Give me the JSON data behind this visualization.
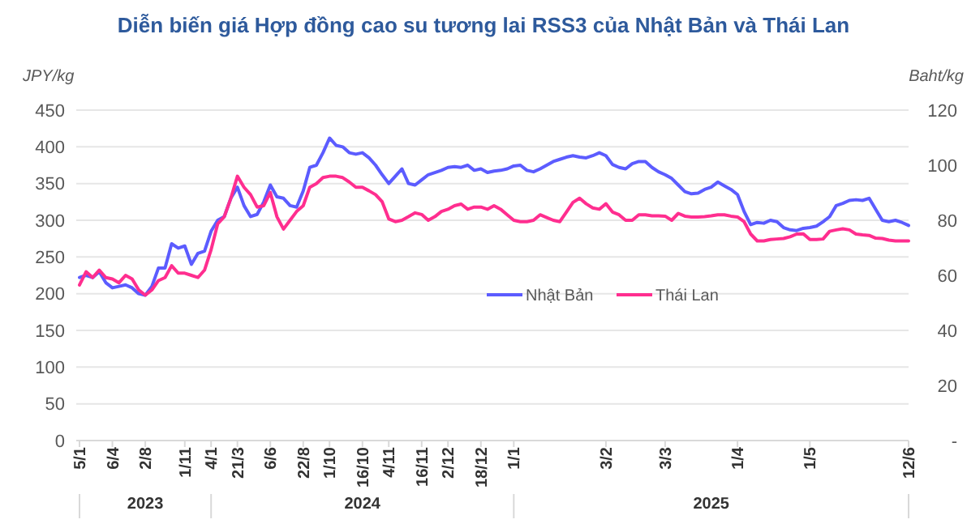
{
  "chart_data": {
    "type": "line",
    "title": "Diễn biến giá Hợp đồng cao su tương lai RSS3 của Nhật Bản và Thái Lan",
    "ylabel": "JPY/kg",
    "y2label": "Baht/kg",
    "categories": [
      "5/1",
      null,
      null,
      null,
      null,
      "6/4",
      null,
      null,
      null,
      null,
      "2/8",
      null,
      null,
      null,
      null,
      null,
      "1/11",
      null,
      null,
      null,
      "4/1",
      null,
      null,
      null,
      "21/3",
      null,
      null,
      null,
      null,
      "6/6",
      null,
      null,
      null,
      null,
      "22/8",
      null,
      null,
      null,
      "1/10",
      null,
      null,
      null,
      null,
      "16/10",
      null,
      null,
      null,
      "4/11",
      null,
      null,
      null,
      null,
      "16/11",
      null,
      null,
      null,
      "2/12",
      null,
      null,
      null,
      null,
      "18/12",
      null,
      null,
      null,
      null,
      "1/1",
      null,
      null,
      null,
      null,
      null,
      null,
      null,
      null,
      null,
      null,
      null,
      null,
      null,
      "3/2",
      null,
      null,
      null,
      null,
      null,
      null,
      null,
      null,
      "3/3",
      null,
      null,
      null,
      null,
      null,
      null,
      null,
      null,
      null,
      null,
      "1/4",
      null,
      null,
      null,
      null,
      null,
      null,
      null,
      null,
      null,
      null,
      "1/5",
      null,
      null,
      null,
      null,
      null,
      null,
      null,
      null,
      null,
      null,
      null,
      null,
      null,
      null,
      "12/6"
    ],
    "series": [
      {
        "name": "Nhật Bản",
        "color": "#5c5cff",
        "values": [
          222,
          225,
          222,
          230,
          215,
          208,
          210,
          212,
          208,
          200,
          198,
          210,
          235,
          235,
          268,
          262,
          265,
          240,
          255,
          258,
          285,
          300,
          305,
          330,
          345,
          320,
          305,
          308,
          325,
          348,
          332,
          330,
          320,
          318,
          340,
          372,
          375,
          392,
          412,
          402,
          400,
          392,
          390,
          392,
          385,
          375,
          362,
          350,
          360,
          370,
          350,
          348,
          355,
          362,
          365,
          368,
          372,
          373,
          372,
          375,
          368,
          370,
          365,
          367,
          368,
          370,
          374,
          375,
          368,
          366,
          370,
          375,
          380,
          383,
          386,
          388,
          386,
          385,
          388,
          392,
          388,
          376,
          372,
          370,
          377,
          380,
          380,
          372,
          366,
          362,
          357,
          348,
          339,
          336,
          337,
          342,
          345,
          352,
          347,
          342,
          335,
          312,
          294,
          297,
          296,
          300,
          298,
          290,
          287,
          286,
          289,
          290,
          292,
          298,
          305,
          320,
          323,
          327,
          328,
          327,
          330,
          315,
          300,
          298,
          300,
          297,
          293
        ]
      },
      {
        "name": "Thái Lan",
        "color": "#ff2e8f",
        "axis": "y2",
        "values": [
          56.5,
          61.3,
          59.2,
          61.9,
          59.2,
          58.7,
          57.3,
          60,
          58.7,
          54.7,
          52.8,
          54.7,
          58.1,
          59.2,
          63.5,
          60.8,
          60.8,
          60,
          59.2,
          61.9,
          69.3,
          78.7,
          81.3,
          88,
          96,
          92,
          89.3,
          84.8,
          85.3,
          90.1,
          81.3,
          76.8,
          80,
          83.2,
          85.3,
          92,
          93.3,
          95.5,
          96,
          96,
          95.5,
          93.9,
          92,
          92,
          90.7,
          89.3,
          86.7,
          80.5,
          79.5,
          80,
          81.3,
          82.7,
          82.1,
          80,
          81.3,
          83.2,
          84,
          85.3,
          85.9,
          84,
          84.8,
          84.8,
          84,
          85.3,
          84,
          82,
          80,
          79.5,
          79.5,
          80,
          82,
          81,
          80,
          79.5,
          83,
          86.5,
          88,
          86,
          84.5,
          84,
          86,
          83,
          82,
          80,
          80,
          82,
          82,
          81.6,
          81.6,
          81.5,
          80,
          82.5,
          81.5,
          81.2,
          81.2,
          81.3,
          81.6,
          82,
          82,
          81.5,
          81.2,
          79.5,
          75,
          72.5,
          72.5,
          73,
          73.2,
          73.4,
          74,
          75,
          75.1,
          73,
          73,
          73.2,
          76,
          76.5,
          76.9,
          76.5,
          75,
          74.7,
          74.5,
          73.5,
          73.4,
          72.8,
          72.5,
          72.5,
          72.5
        ]
      }
    ],
    "ylim": [
      0,
      450
    ],
    "yticks": [
      0,
      50,
      100,
      150,
      200,
      250,
      300,
      350,
      400,
      450
    ],
    "y2lim": [
      0,
      120
    ],
    "y2ticks": [
      {
        "value": 0,
        "label": "-"
      },
      20,
      40,
      60,
      80,
      100,
      120
    ],
    "grid": "y",
    "legend": "center",
    "annotations": [
      "2023",
      "2024",
      "2025"
    ]
  }
}
